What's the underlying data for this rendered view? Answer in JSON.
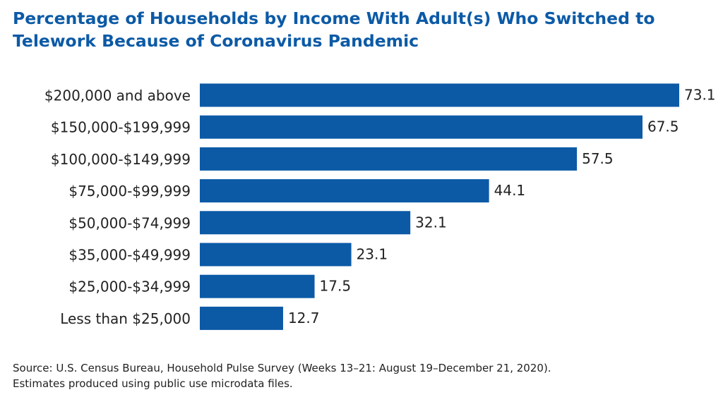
{
  "chart_data": {
    "type": "bar",
    "orientation": "horizontal",
    "title": "Percentage of Households by Income With Adult(s) Who Switched to Telework Because of Coronavirus Pandemic",
    "categories": [
      "$200,000 and above",
      "$150,000-$199,999",
      "$100,000-$149,999",
      "$75,000-$99,999",
      "$50,000-$74,999",
      "$35,000-$49,999",
      "$25,000-$34,999",
      "Less than $25,000"
    ],
    "values": [
      73.1,
      67.5,
      57.5,
      44.1,
      32.1,
      23.1,
      17.5,
      12.7
    ],
    "color": "#0c5aa6",
    "notes": [
      "Source: U.S. Census Bureau, Household Pulse Survey (Weeks 13–21: August 19–December 21, 2020).",
      "Estimates produced using public use microdata files."
    ]
  }
}
